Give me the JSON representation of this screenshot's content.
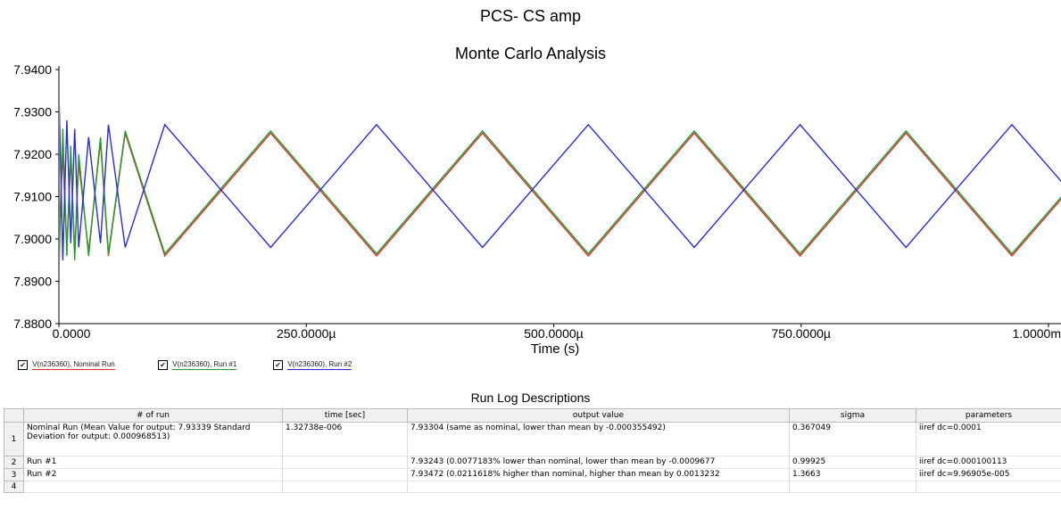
{
  "title": "PCS- CS amp",
  "subtitle": "Monte Carlo Analysis",
  "chart_data": {
    "type": "line",
    "title": "Monte Carlo Analysis",
    "xlabel": "Time (s)",
    "ylabel": "",
    "x_ticks": [
      "0.0000",
      "250.0000µ",
      "500.0000µ",
      "750.0000µ",
      "1.0000m"
    ],
    "y_ticks": [
      "7.9400",
      "7.9300",
      "7.9200",
      "7.9100",
      "7.9000",
      "7.8900",
      "7.8800"
    ],
    "xlim": [
      0,
      0.001
    ],
    "ylim": [
      7.88,
      7.94
    ],
    "series": [
      {
        "name": "V(n236360), Nominal Run",
        "color": "#e0302a",
        "x": [
          0,
          4e-06,
          8e-06,
          1.2e-05,
          1.6e-05,
          2e-05,
          3e-05,
          4.2e-05,
          5e-05,
          6.7e-05,
          0.000107,
          0.000214,
          0.000321,
          0.000428,
          0.000535,
          0.000642,
          0.000749,
          0.000856,
          0.000963,
          0.001071
        ],
        "y": [
          7.9,
          7.92,
          7.898,
          7.919,
          7.897,
          7.918,
          7.897,
          7.923,
          7.896,
          7.925,
          7.896,
          7.925,
          7.896,
          7.925,
          7.896,
          7.925,
          7.896,
          7.925,
          7.896,
          7.925
        ]
      },
      {
        "name": "V(n236360), Run #1",
        "color": "#1e9e2e",
        "x": [
          0,
          4e-06,
          8e-06,
          1.2e-05,
          1.6e-05,
          2e-05,
          3e-05,
          4.2e-05,
          5e-05,
          6.7e-05,
          0.000107,
          0.000214,
          0.000321,
          0.000428,
          0.000535,
          0.000642,
          0.000749,
          0.000856,
          0.000963,
          0.001071
        ],
        "y": [
          7.892,
          7.926,
          7.896,
          7.922,
          7.895,
          7.92,
          7.896,
          7.924,
          7.8965,
          7.9255,
          7.8965,
          7.9255,
          7.8965,
          7.9255,
          7.8965,
          7.9255,
          7.8965,
          7.9255,
          7.8965,
          7.9255
        ]
      },
      {
        "name": "V(n236360), Run #2",
        "color": "#2a2ad6",
        "x": [
          0,
          4e-06,
          8e-06,
          1.2e-05,
          1.6e-05,
          2e-05,
          3e-05,
          4.2e-05,
          5e-05,
          6.7e-05,
          0.000107,
          0.000214,
          0.000321,
          0.000428,
          0.000535,
          0.000642,
          0.000749,
          0.000856,
          0.000963,
          0.001071
        ],
        "y": [
          7.935,
          7.895,
          7.928,
          7.899,
          7.926,
          7.898,
          7.924,
          7.899,
          7.927,
          7.898,
          7.927,
          7.898,
          7.927,
          7.898,
          7.927,
          7.898,
          7.927,
          7.898,
          7.927,
          7.898
        ]
      }
    ],
    "legend_position": "bottom-left",
    "grid": false
  },
  "legend": [
    {
      "label": "V(n236360), Nominal Run",
      "checked": "✔",
      "color": "#e0302a"
    },
    {
      "label": "V(n236360), Run #1",
      "checked": "✔",
      "color": "#1e9e2e"
    },
    {
      "label": "V(n236360), Run #2",
      "checked": "✔",
      "color": "#2a2ad6"
    }
  ],
  "run_log": {
    "title": "Run Log Descriptions",
    "columns": [
      "# of run",
      "time [sec]",
      "output value",
      "sigma",
      "parameters"
    ],
    "rows": [
      {
        "index": "1",
        "run": "Nominal Run (Mean Value for output: 7.93339  Standard Deviation for output: 0.000968513)",
        "time": "1.32738e-006",
        "output": "7.93304 (same as nominal, lower than mean by -0.000355492)",
        "sigma": "0.367049",
        "params": "iiref dc=0.0001"
      },
      {
        "index": "2",
        "run": "Run #1",
        "time": "",
        "output": "7.93243 (0.0077183% lower than nominal, lower than mean by -0.0009677",
        "sigma": "0.99925",
        "params": "iiref dc=0.000100113"
      },
      {
        "index": "3",
        "run": "Run #2",
        "time": "",
        "output": "7.93472 (0.0211618% higher than nominal, higher than mean by 0.0013232",
        "sigma": "1.3663",
        "params": "iiref dc=9.96905e-005"
      },
      {
        "index": "4",
        "run": "",
        "time": "",
        "output": "",
        "sigma": "",
        "params": ""
      }
    ]
  }
}
